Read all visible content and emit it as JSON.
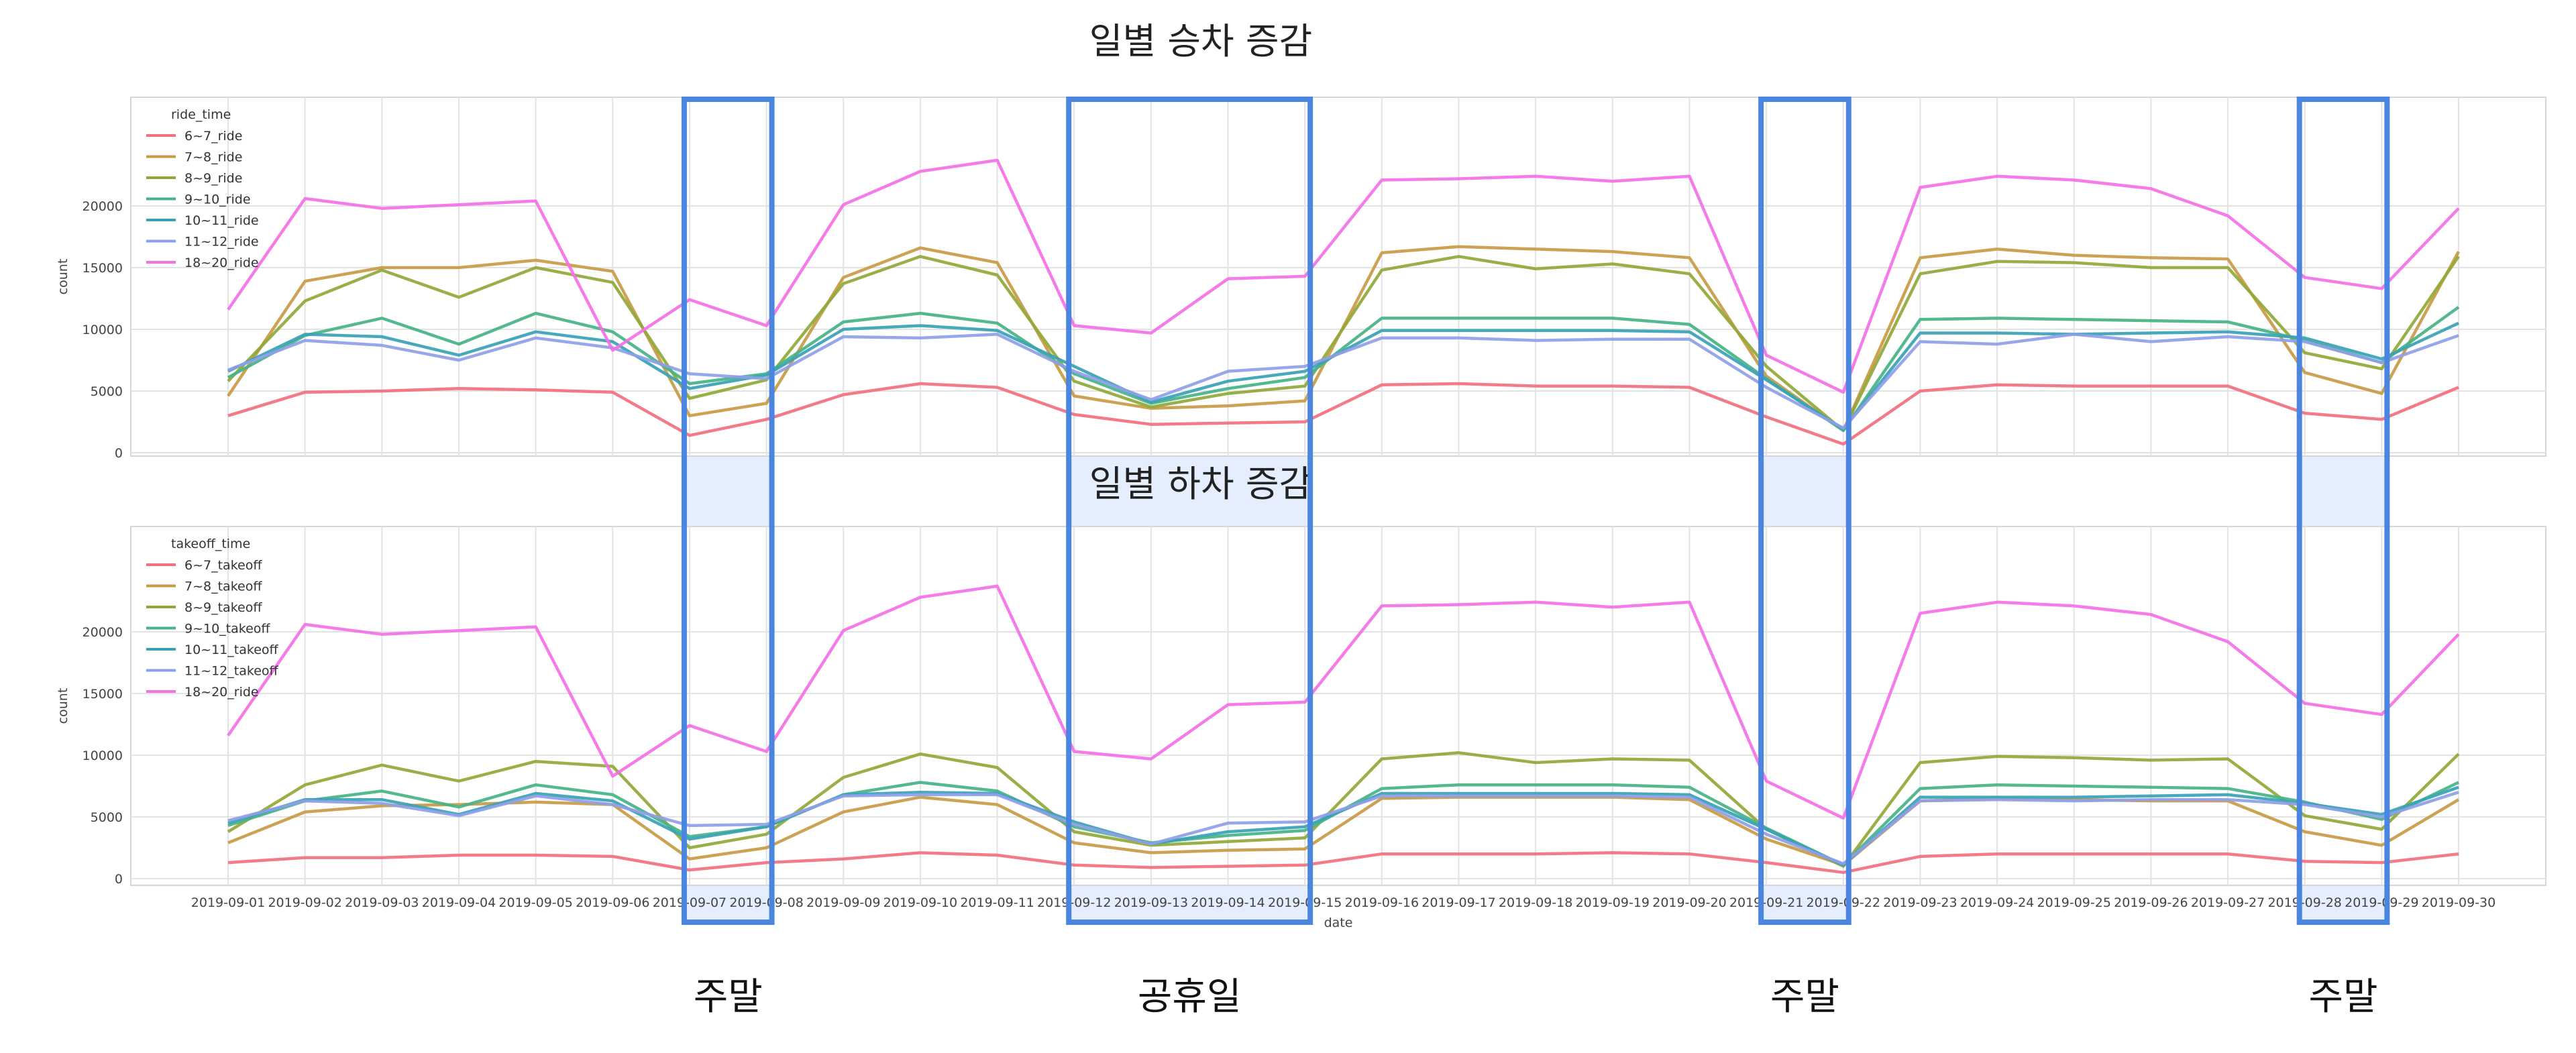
{
  "chart_data": [
    {
      "type": "line",
      "title": "일별 승차 증감",
      "xlabel": "date",
      "ylabel": "count",
      "ylim": [
        0,
        25000
      ],
      "yticks": [
        0,
        5000,
        10000,
        15000,
        20000
      ],
      "grid": true,
      "legend_title": "ride_time",
      "legend_position": "top-left",
      "categories": [
        "2019-09-01",
        "2019-09-02",
        "2019-09-03",
        "2019-09-04",
        "2019-09-05",
        "2019-09-06",
        "2019-09-07",
        "2019-09-08",
        "2019-09-09",
        "2019-09-10",
        "2019-09-11",
        "2019-09-12",
        "2019-09-13",
        "2019-09-14",
        "2019-09-15",
        "2019-09-16",
        "2019-09-17",
        "2019-09-18",
        "2019-09-19",
        "2019-09-20",
        "2019-09-21",
        "2019-09-22",
        "2019-09-23",
        "2019-09-24",
        "2019-09-25",
        "2019-09-26",
        "2019-09-27",
        "2019-09-28",
        "2019-09-29",
        "2019-09-30"
      ],
      "series": [
        {
          "name": "6~7_ride",
          "color": "#f2707f",
          "values": [
            3000,
            4900,
            5000,
            5200,
            5100,
            4900,
            1400,
            2700,
            4700,
            5600,
            5300,
            3100,
            2300,
            2400,
            2500,
            5500,
            5600,
            5400,
            5400,
            5300,
            2900,
            700,
            5000,
            5500,
            5400,
            5400,
            5400,
            3200,
            2700,
            5300
          ]
        },
        {
          "name": "7~8_ride",
          "color": "#c89a46",
          "values": [
            4600,
            13900,
            15000,
            15000,
            15600,
            14700,
            3000,
            4000,
            14200,
            16600,
            15400,
            4600,
            3600,
            3800,
            4200,
            16200,
            16700,
            16500,
            16300,
            15800,
            6200,
            1800,
            15800,
            16500,
            16000,
            15800,
            15700,
            6500,
            4800,
            16300
          ]
        },
        {
          "name": "8~9_ride",
          "color": "#90a837",
          "values": [
            5800,
            12300,
            14800,
            12600,
            15000,
            13800,
            4400,
            5900,
            13700,
            15900,
            14400,
            5800,
            3700,
            4800,
            5400,
            14800,
            15900,
            14900,
            15300,
            14500,
            7000,
            1800,
            14500,
            15500,
            15400,
            15000,
            15000,
            8100,
            6800,
            15900
          ]
        },
        {
          "name": "9~10_ride",
          "color": "#46b386",
          "values": [
            6100,
            9500,
            10900,
            8800,
            11300,
            9800,
            5600,
            6400,
            10600,
            11300,
            10500,
            6400,
            4000,
            5200,
            6100,
            10900,
            10900,
            10900,
            10900,
            10400,
            6000,
            1800,
            10800,
            10900,
            10800,
            10700,
            10600,
            9100,
            7300,
            11800
          ]
        },
        {
          "name": "10~11_ride",
          "color": "#3aa2b6",
          "values": [
            6600,
            9600,
            9400,
            7900,
            9800,
            9000,
            5200,
            6300,
            10000,
            10300,
            9900,
            7000,
            4100,
            5800,
            6600,
            9900,
            9900,
            9900,
            9900,
            9800,
            5900,
            1900,
            9700,
            9700,
            9600,
            9700,
            9800,
            9300,
            7600,
            10500
          ]
        },
        {
          "name": "11~12_ride",
          "color": "#8f9ee8",
          "values": [
            6700,
            9100,
            8700,
            7500,
            9300,
            8500,
            6400,
            6000,
            9400,
            9300,
            9600,
            6600,
            4300,
            6600,
            7000,
            9300,
            9300,
            9100,
            9200,
            9200,
            5300,
            2000,
            9000,
            8800,
            9600,
            9000,
            9400,
            9000,
            7300,
            9500
          ]
        },
        {
          "name": "18~20_ride",
          "color": "#f470e6",
          "values": [
            11600,
            20600,
            19800,
            20100,
            20400,
            8300,
            12400,
            10300,
            20100,
            22800,
            23700,
            10300,
            9700,
            14100,
            14300,
            22100,
            22200,
            22400,
            22000,
            22400,
            7900,
            4900,
            21500,
            22400,
            22100,
            21400,
            19200,
            14200,
            13300,
            19800
          ]
        }
      ]
    },
    {
      "type": "line",
      "title": "일별 하차 증감",
      "xlabel": "date",
      "ylabel": "count",
      "ylim": [
        0,
        25000
      ],
      "yticks": [
        0,
        5000,
        10000,
        15000,
        20000
      ],
      "grid": true,
      "legend_title": "takeoff_time",
      "legend_position": "top-left",
      "categories": [
        "2019-09-01",
        "2019-09-02",
        "2019-09-03",
        "2019-09-04",
        "2019-09-05",
        "2019-09-06",
        "2019-09-07",
        "2019-09-08",
        "2019-09-09",
        "2019-09-10",
        "2019-09-11",
        "2019-09-12",
        "2019-09-13",
        "2019-09-14",
        "2019-09-15",
        "2019-09-16",
        "2019-09-17",
        "2019-09-18",
        "2019-09-19",
        "2019-09-20",
        "2019-09-21",
        "2019-09-22",
        "2019-09-23",
        "2019-09-24",
        "2019-09-25",
        "2019-09-26",
        "2019-09-27",
        "2019-09-28",
        "2019-09-29",
        "2019-09-30"
      ],
      "series": [
        {
          "name": "6~7_takeoff",
          "color": "#f2707f",
          "values": [
            1300,
            1700,
            1700,
            1900,
            1900,
            1800,
            700,
            1300,
            1600,
            2100,
            1900,
            1100,
            900,
            1000,
            1100,
            2000,
            2000,
            2000,
            2100,
            2000,
            1300,
            500,
            1800,
            2000,
            2000,
            2000,
            2000,
            1400,
            1300,
            2000
          ]
        },
        {
          "name": "7~8_takeoff",
          "color": "#c89a46",
          "values": [
            2900,
            5400,
            5900,
            6000,
            6200,
            6000,
            1600,
            2500,
            5400,
            6600,
            6000,
            2900,
            2100,
            2300,
            2400,
            6500,
            6600,
            6600,
            6600,
            6400,
            3200,
            1100,
            6300,
            6500,
            6400,
            6300,
            6300,
            3800,
            2700,
            6400
          ]
        },
        {
          "name": "8~9_takeoff",
          "color": "#90a837",
          "values": [
            3800,
            7600,
            9200,
            7900,
            9500,
            9100,
            2500,
            3600,
            8200,
            10100,
            9000,
            3800,
            2700,
            3000,
            3300,
            9700,
            10200,
            9400,
            9700,
            9600,
            4000,
            1000,
            9400,
            9900,
            9800,
            9600,
            9700,
            5100,
            4000,
            10100
          ]
        },
        {
          "name": "9~10_takeoff",
          "color": "#46b386",
          "values": [
            4300,
            6300,
            7100,
            5800,
            7600,
            6800,
            3400,
            4200,
            6800,
            7800,
            7100,
            4200,
            2900,
            3500,
            3900,
            7300,
            7600,
            7600,
            7600,
            7400,
            4100,
            1100,
            7300,
            7600,
            7500,
            7400,
            7300,
            6200,
            4800,
            7800
          ]
        },
        {
          "name": "10~11_takeoff",
          "color": "#3aa2b6",
          "values": [
            4500,
            6400,
            6400,
            5200,
            6900,
            6300,
            3200,
            4200,
            6800,
            7000,
            6900,
            4600,
            2800,
            3800,
            4200,
            6900,
            6900,
            6900,
            6900,
            6800,
            4000,
            1100,
            6600,
            6600,
            6600,
            6700,
            6800,
            6100,
            5200,
            7400
          ]
        },
        {
          "name": "11~12_takeoff",
          "color": "#8f9ee8",
          "values": [
            4700,
            6300,
            6100,
            5100,
            6700,
            6000,
            4300,
            4400,
            6700,
            6800,
            6800,
            4400,
            2800,
            4500,
            4600,
            6700,
            6700,
            6700,
            6700,
            6600,
            3600,
            1200,
            6300,
            6400,
            6300,
            6400,
            6400,
            6000,
            5000,
            7000
          ]
        },
        {
          "name": "18~20_ride",
          "color": "#f470e6",
          "values": [
            11600,
            20600,
            19800,
            20100,
            20400,
            8300,
            12400,
            10300,
            20100,
            22800,
            23700,
            10300,
            9700,
            14100,
            14300,
            22100,
            22200,
            22400,
            22000,
            22400,
            7900,
            4900,
            21500,
            22400,
            22100,
            21400,
            19200,
            14200,
            13300,
            19800
          ]
        }
      ]
    }
  ],
  "annotations": {
    "highlight_fill": "#dbe8fb",
    "highlight_stroke": "#4a86df",
    "bands": [
      {
        "label": "주말",
        "from": "2019-09-07",
        "to": "2019-09-08"
      },
      {
        "label": "공휴일",
        "from": "2019-09-12",
        "to": "2019-09-15"
      },
      {
        "label": "주말",
        "from": "2019-09-21",
        "to": "2019-09-22"
      },
      {
        "label": "주말",
        "from": "2019-09-28",
        "to": "2019-09-29"
      }
    ]
  }
}
